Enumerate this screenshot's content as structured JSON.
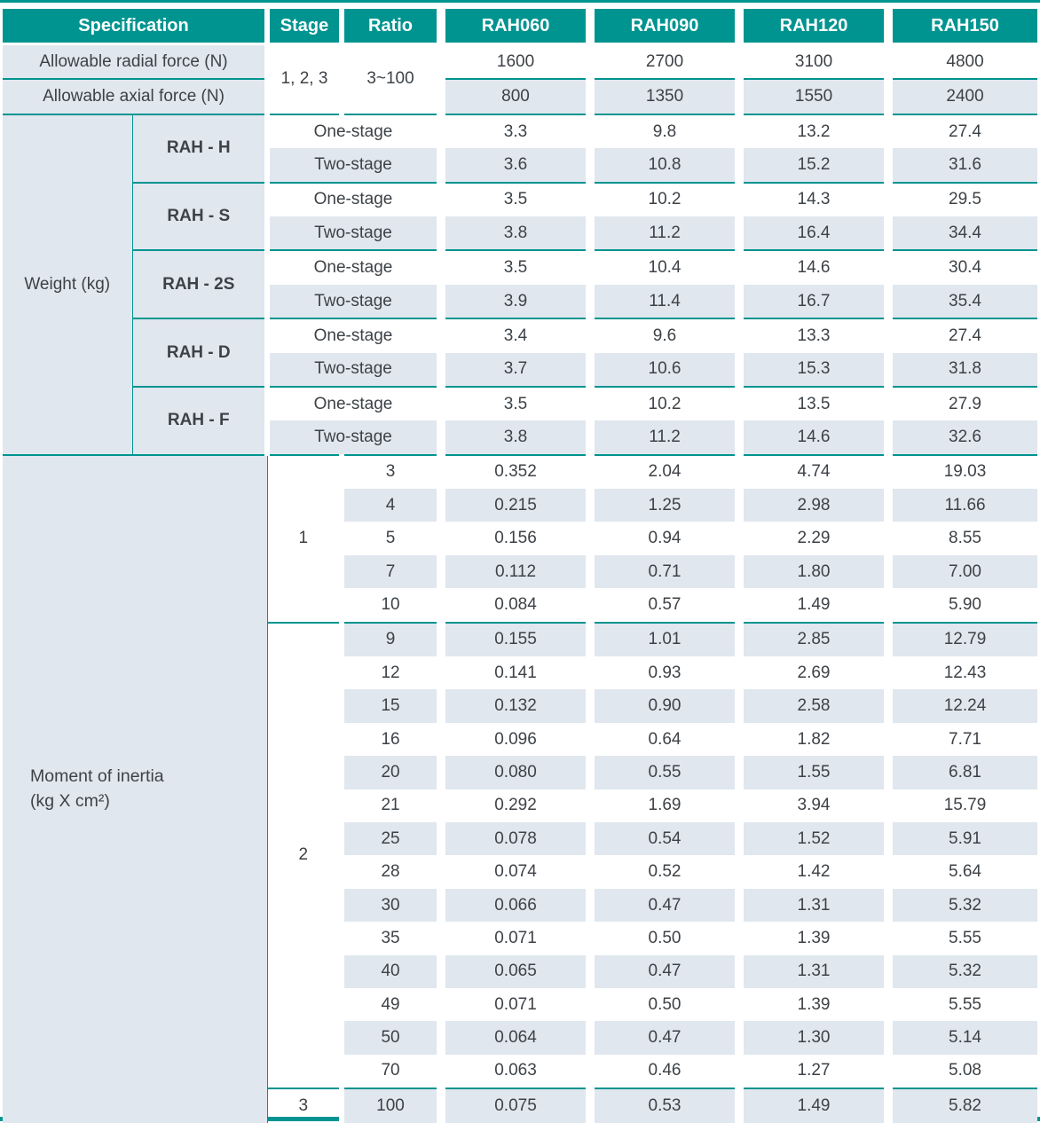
{
  "header": {
    "columns": [
      "Specification",
      "Stage",
      "Ratio",
      "RAH060",
      "RAH090",
      "RAH120",
      "RAH150"
    ]
  },
  "forces": {
    "stage": "1, 2, 3",
    "ratio": "3~100",
    "rows": [
      {
        "label": "Allowable radial force (N)",
        "values": [
          "1600",
          "2700",
          "3100",
          "4800"
        ]
      },
      {
        "label": "Allowable axial force (N)",
        "values": [
          "800",
          "1350",
          "1550",
          "2400"
        ]
      }
    ]
  },
  "weight": {
    "label": "Weight (kg)",
    "models": [
      {
        "name": "RAH - H",
        "rows": [
          {
            "type": "One-stage",
            "values": [
              "3.3",
              "9.8",
              "13.2",
              "27.4"
            ]
          },
          {
            "type": "Two-stage",
            "values": [
              "3.6",
              "10.8",
              "15.2",
              "31.6"
            ]
          }
        ]
      },
      {
        "name": "RAH - S",
        "rows": [
          {
            "type": "One-stage",
            "values": [
              "3.5",
              "10.2",
              "14.3",
              "29.5"
            ]
          },
          {
            "type": "Two-stage",
            "values": [
              "3.8",
              "11.2",
              "16.4",
              "34.4"
            ]
          }
        ]
      },
      {
        "name": "RAH - 2S",
        "rows": [
          {
            "type": "One-stage",
            "values": [
              "3.5",
              "10.4",
              "14.6",
              "30.4"
            ]
          },
          {
            "type": "Two-stage",
            "values": [
              "3.9",
              "11.4",
              "16.7",
              "35.4"
            ]
          }
        ]
      },
      {
        "name": "RAH - D",
        "rows": [
          {
            "type": "One-stage",
            "values": [
              "3.4",
              "9.6",
              "13.3",
              "27.4"
            ]
          },
          {
            "type": "Two-stage",
            "values": [
              "3.7",
              "10.6",
              "15.3",
              "31.8"
            ]
          }
        ]
      },
      {
        "name": "RAH - F",
        "rows": [
          {
            "type": "One-stage",
            "values": [
              "3.5",
              "10.2",
              "13.5",
              "27.9"
            ]
          },
          {
            "type": "Two-stage",
            "values": [
              "3.8",
              "11.2",
              "14.6",
              "32.6"
            ]
          }
        ]
      }
    ]
  },
  "inertia": {
    "label_line1": "Moment of inertia",
    "label_line2": "(kg X cm²)",
    "groups": [
      {
        "stage": "1",
        "rows": [
          [
            "3",
            "0.352",
            "2.04",
            "4.74",
            "19.03"
          ],
          [
            "4",
            "0.215",
            "1.25",
            "2.98",
            "11.66"
          ],
          [
            "5",
            "0.156",
            "0.94",
            "2.29",
            "8.55"
          ],
          [
            "7",
            "0.112",
            "0.71",
            "1.80",
            "7.00"
          ],
          [
            "10",
            "0.084",
            "0.57",
            "1.49",
            "5.90"
          ]
        ]
      },
      {
        "stage": "2",
        "rows": [
          [
            "9",
            "0.155",
            "1.01",
            "2.85",
            "12.79"
          ],
          [
            "12",
            "0.141",
            "0.93",
            "2.69",
            "12.43"
          ],
          [
            "15",
            "0.132",
            "0.90",
            "2.58",
            "12.24"
          ],
          [
            "16",
            "0.096",
            "0.64",
            "1.82",
            "7.71"
          ],
          [
            "20",
            "0.080",
            "0.55",
            "1.55",
            "6.81"
          ],
          [
            "21",
            "0.292",
            "1.69",
            "3.94",
            "15.79"
          ],
          [
            "25",
            "0.078",
            "0.54",
            "1.52",
            "5.91"
          ],
          [
            "28",
            "0.074",
            "0.52",
            "1.42",
            "5.64"
          ],
          [
            "30",
            "0.066",
            "0.47",
            "1.31",
            "5.32"
          ],
          [
            "35",
            "0.071",
            "0.50",
            "1.39",
            "5.55"
          ],
          [
            "40",
            "0.065",
            "0.47",
            "1.31",
            "5.32"
          ],
          [
            "49",
            "0.071",
            "0.50",
            "1.39",
            "5.55"
          ],
          [
            "50",
            "0.064",
            "0.47",
            "1.30",
            "5.14"
          ],
          [
            "70",
            "0.063",
            "0.46",
            "1.27",
            "5.08"
          ]
        ]
      },
      {
        "stage": "3",
        "rows": [
          [
            "100",
            "0.075",
            "0.53",
            "1.49",
            "5.82"
          ]
        ]
      }
    ]
  },
  "colors": {
    "teal": "#009490",
    "light_row": "#E0E7EE",
    "text": "#3D4247",
    "header_text": "#FFFFFF"
  }
}
